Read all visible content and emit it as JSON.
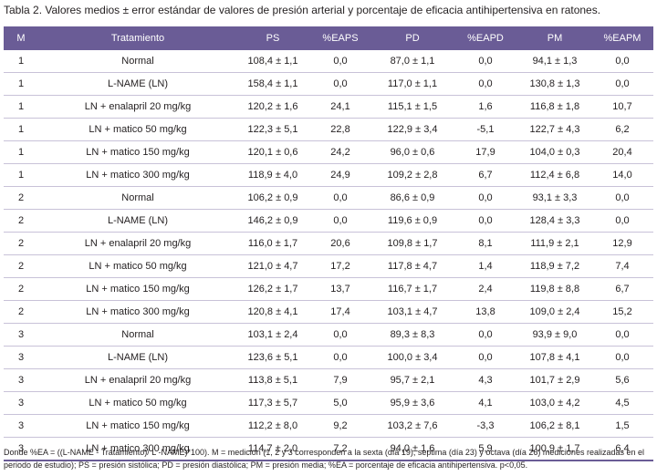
{
  "caption": "Tabla 2. Valores medios ± error estándar de valores de presión arterial y porcentaje de eficacia antihipertensiva en ratones.",
  "table": {
    "headers": [
      "M",
      "Tratamiento",
      "PS",
      "%EAPS",
      "PD",
      "%EAPD",
      "PM",
      "%EAPM"
    ],
    "rows": [
      [
        "1",
        "Normal",
        "108,4 ± 1,1",
        "0,0",
        "87,0 ± 1,1",
        "0,0",
        "94,1 ± 1,3",
        "0,0"
      ],
      [
        "1",
        "L-NAME (LN)",
        "158,4 ± 1,1",
        "0,0",
        "117,0 ± 1,1",
        "0,0",
        "130,8 ± 1,3",
        "0,0"
      ],
      [
        "1",
        "LN + enalapril 20 mg/kg",
        "120,2 ± 1,6",
        "24,1",
        "115,1 ± 1,5",
        "1,6",
        "116,8 ± 1,8",
        "10,7"
      ],
      [
        "1",
        "LN + matico 50 mg/kg",
        "122,3 ± 5,1",
        "22,8",
        "122,9 ± 3,4",
        "-5,1",
        "122,7 ± 4,3",
        "6,2"
      ],
      [
        "1",
        "LN + matico 150 mg/kg",
        "120,1 ± 0,6",
        "24,2",
        "96,0 ± 0,6",
        "17,9",
        "104,0 ± 0,3",
        "20,4"
      ],
      [
        "1",
        "LN + matico 300 mg/kg",
        "118,9 ± 4,0",
        "24,9",
        "109,2 ± 2,8",
        "6,7",
        "112,4 ± 6,8",
        "14,0"
      ],
      [
        "2",
        "Normal",
        "106,2 ± 0,9",
        "0,0",
        "86,6 ± 0,9",
        "0,0",
        "93,1 ± 3,3",
        "0,0"
      ],
      [
        "2",
        "L-NAME (LN)",
        "146,2 ± 0,9",
        "0,0",
        "119,6 ± 0,9",
        "0,0",
        "128,4 ± 3,3",
        "0,0"
      ],
      [
        "2",
        "LN + enalapril 20 mg/kg",
        "116,0 ± 1,7",
        "20,6",
        "109,8 ± 1,7",
        "8,1",
        "111,9 ± 2,1",
        "12,9"
      ],
      [
        "2",
        "LN + matico 50 mg/kg",
        "121,0 ± 4,7",
        "17,2",
        "117,8 ± 4,7",
        "1,4",
        "118,9 ± 7,2",
        "7,4"
      ],
      [
        "2",
        "LN + matico 150 mg/kg",
        "126,2 ± 1,7",
        "13,7",
        "116,7 ± 1,7",
        "2,4",
        "119,8 ± 8,8",
        "6,7"
      ],
      [
        "2",
        "LN + matico 300 mg/kg",
        "120,8 ± 4,1",
        "17,4",
        "103,1 ± 4,7",
        "13,8",
        "109,0 ± 2,4",
        "15,2"
      ],
      [
        "3",
        "Normal",
        "103,1 ± 2,4",
        "0,0",
        "89,3 ± 8,3",
        "0,0",
        "93,9 ± 9,0",
        "0,0"
      ],
      [
        "3",
        "L-NAME (LN)",
        "123,6 ± 5,1",
        "0,0",
        "100,0 ± 3,4",
        "0,0",
        "107,8 ± 4,1",
        "0,0"
      ],
      [
        "3",
        "LN + enalapril 20 mg/kg",
        "113,8 ± 5,1",
        "7,9",
        "95,7 ± 2,1",
        "4,3",
        "101,7 ± 2,9",
        "5,6"
      ],
      [
        "3",
        "LN + matico 50 mg/kg",
        "117,3 ± 5,7",
        "5,0",
        "95,9 ± 3,6",
        "4,1",
        "103,0 ± 4,2",
        "4,5"
      ],
      [
        "3",
        "LN + matico 150 mg/kg",
        "112,2 ± 8,0",
        "9,2",
        "103,2 ± 7,6",
        "-3,3",
        "106,2 ± 8,1",
        "1,5"
      ],
      [
        "3",
        "LN + matico 300 mg/kg",
        "114,7 ± 2,0",
        "7,2",
        "94,0 ± 1,6",
        "5,9",
        "100,9 ± 1,7",
        "6,4"
      ]
    ]
  },
  "footnote": "Donde %EA = ((L-NAME - Tratamiento)/ L -NAME)*100). M = medición (1, 2 y 3 corresponden a la sexta (día 19), septima (día 23) y octava (día 26) mediciones realizadas en el periodo de estudio); PS = presión sistólica; PD = presión diastólica; PM = presión media; %EA = porcentaje de eficacia antihipertensiva. p<0,05.",
  "colors": {
    "header_bg": "#6a5c96",
    "header_text": "#ffffff",
    "row_rule": "#c8c2d8"
  }
}
